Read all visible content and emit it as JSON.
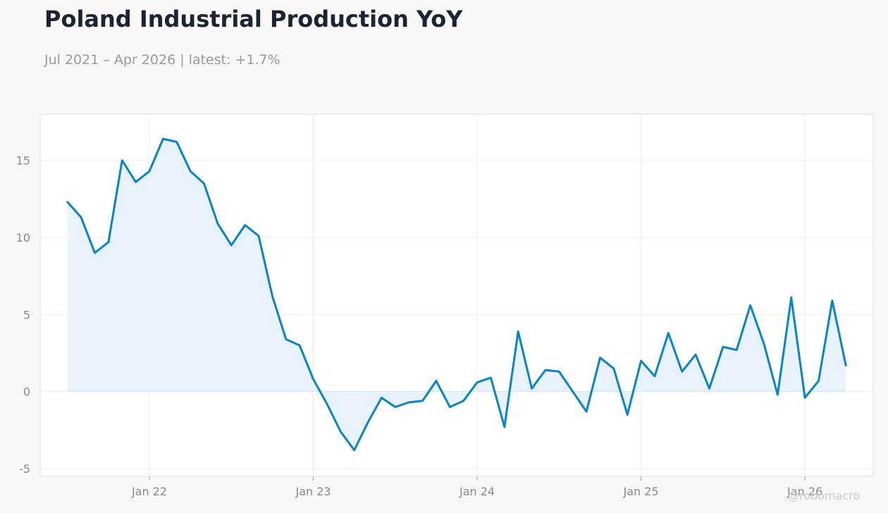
{
  "header": {
    "title": "Poland Industrial Production YoY",
    "subtitle": "Jul 2021 – Apr 2026 | latest: +1.7%"
  },
  "watermark": "@robomacro",
  "colors": {
    "line": "#0a84c6",
    "fill": "#e6f1fa",
    "background": "#f9f8f6",
    "plot_background": "#ffffff",
    "grid": "#eeeeee"
  },
  "chart_data": {
    "type": "area",
    "title": "Poland Industrial Production YoY",
    "xlabel": "",
    "ylabel": "",
    "grid": true,
    "legend": "none",
    "x_range": [
      "2021-05",
      "2026-06"
    ],
    "ylim": [
      -5.5,
      18
    ],
    "y_ticks": [
      -5,
      0,
      5,
      10,
      15
    ],
    "y_tick_labels": [
      "-5",
      "0",
      "5",
      "10",
      "15"
    ],
    "x_ticks": [
      "2022-01",
      "2023-01",
      "2024-01",
      "2025-01",
      "2026-01"
    ],
    "x_tick_labels": [
      "Jan 22",
      "Jan 23",
      "Jan 24",
      "Jan 25",
      "Jan 26"
    ],
    "series": [
      {
        "dates": [
          "2021-07",
          "2021-08",
          "2021-09",
          "2021-10",
          "2021-11",
          "2021-12",
          "2022-01",
          "2022-02",
          "2022-03",
          "2022-04",
          "2022-05",
          "2022-06",
          "2022-07",
          "2022-08",
          "2022-09",
          "2022-10",
          "2022-11",
          "2022-12",
          "2023-01",
          "2023-02",
          "2023-03",
          "2023-04",
          "2023-05",
          "2023-06",
          "2023-07",
          "2023-08",
          "2023-09",
          "2023-10",
          "2023-11",
          "2023-12",
          "2024-01",
          "2024-02",
          "2024-03",
          "2024-04",
          "2024-05",
          "2024-06",
          "2024-07",
          "2024-08",
          "2024-09",
          "2024-10",
          "2024-11",
          "2024-12",
          "2025-01",
          "2025-02",
          "2025-03",
          "2025-04",
          "2025-05",
          "2025-06",
          "2025-07",
          "2025-08",
          "2025-09",
          "2025-10",
          "2025-11",
          "2025-12",
          "2026-01",
          "2026-02",
          "2026-03",
          "2026-04"
        ],
        "values": [
          12.3,
          11.3,
          9.0,
          9.7,
          15.0,
          13.6,
          14.3,
          16.4,
          16.2,
          14.3,
          13.5,
          10.9,
          9.5,
          10.8,
          10.1,
          6.2,
          3.4,
          3.0,
          0.8,
          -0.8,
          -2.6,
          -3.8,
          -2.0,
          -0.4,
          -1.0,
          -0.7,
          -0.6,
          0.7,
          -1.0,
          -0.6,
          0.6,
          0.9,
          -2.3,
          3.9,
          0.2,
          1.4,
          1.3,
          0.0,
          -1.3,
          2.2,
          1.5,
          -1.5,
          2.0,
          1.0,
          3.8,
          1.3,
          2.4,
          0.2,
          2.9,
          2.7,
          5.6,
          3.1,
          -0.2,
          6.1,
          -0.4,
          0.7,
          5.9,
          1.7
        ]
      }
    ]
  }
}
